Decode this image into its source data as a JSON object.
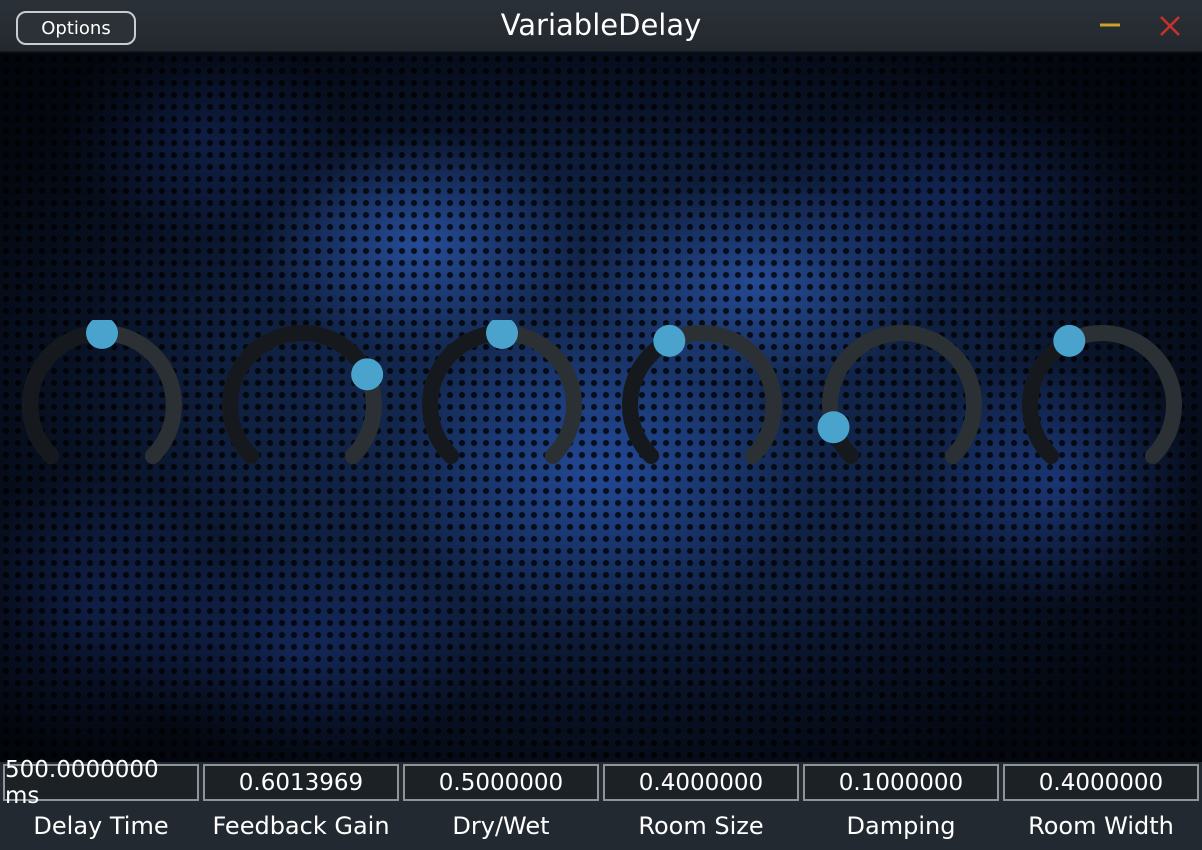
{
  "window": {
    "title": "VariableDelay",
    "options_label": "Options",
    "minimize_icon": "minimize-icon",
    "close_icon": "close-icon",
    "colors": {
      "minimize": "#c9a227",
      "close": "#c9302c"
    }
  },
  "theme": {
    "accent": "#4aa3cc",
    "track_active": "#15191d",
    "track_inactive": "#2b3035"
  },
  "knobs": [
    {
      "label": "Delay Time",
      "value_text": "500.0000000 ms",
      "level": 0.5
    },
    {
      "label": "Feedback Gain",
      "value_text": "0.6013969",
      "level": 0.74
    },
    {
      "label": "Dry/Wet",
      "value_text": "0.5000000",
      "level": 0.5
    },
    {
      "label": "Room Size",
      "value_text": "0.4000000",
      "level": 0.4
    },
    {
      "label": "Damping",
      "value_text": "0.1000000",
      "level": 0.1
    },
    {
      "label": "Room Width",
      "value_text": "0.4000000",
      "level": 0.4
    }
  ]
}
